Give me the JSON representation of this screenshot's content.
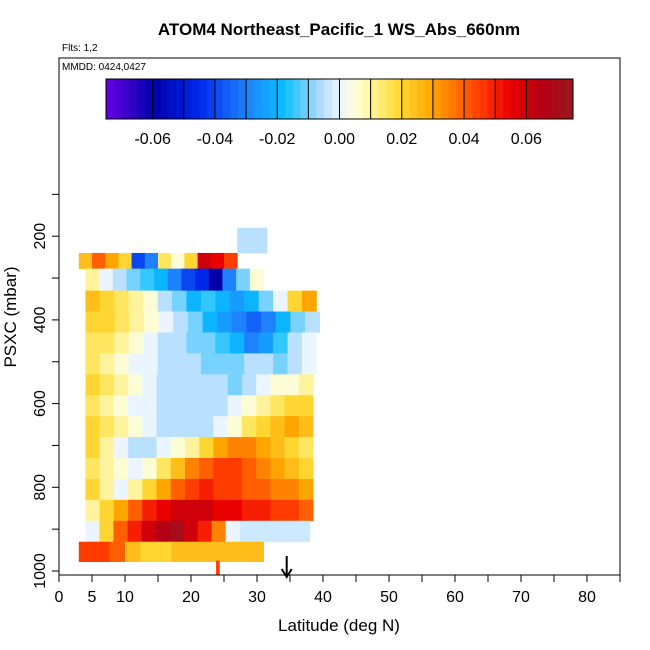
{
  "chart_data": {
    "type": "heatmap",
    "title": "ATOM4 Northeast_Pacific_1 WS_Abs_660nm",
    "flights_label": "Flts: 1,2",
    "dates_label": "MMDD: 0424,0427",
    "xlabel": "Latitude (deg N)",
    "ylabel": "PSXC (mbar)",
    "xlim": [
      0,
      85
    ],
    "ylim": [
      1000,
      0
    ],
    "x_ticks": [
      0,
      5,
      10,
      20,
      30,
      40,
      50,
      60,
      70,
      80
    ],
    "y_ticks": [
      200,
      400,
      600,
      800,
      1000
    ],
    "colorbar": {
      "range": [
        -0.075,
        0.075
      ],
      "ticks": [
        -0.06,
        -0.04,
        -0.02,
        0.0,
        0.02,
        0.04,
        0.06
      ],
      "tick_labels": [
        "-0.06",
        "-0.04",
        "-0.02",
        "0.00",
        "0.02",
        "0.04",
        "0.06"
      ]
    },
    "marker": {
      "type": "arrow",
      "latitude": 34.5
    },
    "rows": [
      {
        "p": 200,
        "lat": [
          27,
          31.5
        ],
        "vals": [
          -0.005,
          -0.005,
          -0.005
        ]
      },
      {
        "p": 230,
        "lat": [
          27,
          31.5
        ],
        "vals": [
          -0.005,
          -0.005,
          -0.005
        ]
      },
      {
        "p": 250,
        "lat": [
          3,
          27
        ],
        "vals": [
          0.025,
          0.04,
          0.03,
          0.02,
          -0.04,
          -0.03,
          0.015,
          0.005,
          0.02,
          0.06,
          0.055,
          0.045
        ]
      },
      {
        "p": 305,
        "lat": [
          4,
          31
        ],
        "vals": [
          0.01,
          0.0,
          -0.005,
          -0.01,
          -0.015,
          -0.02,
          -0.03,
          -0.04,
          -0.045,
          -0.06,
          -0.03,
          -0.01,
          0.005
        ]
      },
      {
        "p": 355,
        "lat": [
          4,
          39
        ],
        "vals": [
          0.025,
          0.02,
          0.015,
          0.01,
          0.005,
          -0.005,
          -0.01,
          -0.02,
          -0.015,
          -0.02,
          -0.025,
          -0.02,
          -0.01,
          0.0,
          0.02,
          0.03
        ]
      },
      {
        "p": 405,
        "lat": [
          4,
          39.5
        ],
        "vals": [
          0.02,
          0.02,
          0.015,
          0.01,
          0.005,
          0.0,
          -0.005,
          -0.01,
          -0.02,
          -0.025,
          -0.03,
          -0.035,
          -0.03,
          -0.02,
          -0.01,
          -0.005
        ]
      },
      {
        "p": 455,
        "lat": [
          4,
          39
        ],
        "vals": [
          0.015,
          0.015,
          0.01,
          0.005,
          0.0,
          -0.005,
          -0.005,
          -0.01,
          -0.01,
          -0.015,
          -0.02,
          -0.03,
          -0.025,
          -0.015,
          -0.005,
          0.0
        ]
      },
      {
        "p": 505,
        "lat": [
          4,
          39
        ],
        "vals": [
          0.015,
          0.01,
          0.005,
          0.0,
          0.0,
          -0.005,
          -0.005,
          -0.005,
          -0.01,
          -0.01,
          -0.01,
          -0.005,
          -0.005,
          -0.01,
          -0.005,
          0.0
        ]
      },
      {
        "p": 555,
        "lat": [
          4,
          38.5
        ],
        "vals": [
          0.02,
          0.015,
          0.01,
          0.005,
          0.0,
          -0.005,
          -0.005,
          -0.005,
          -0.005,
          -0.005,
          -0.01,
          -0.005,
          0.0,
          0.005,
          0.005,
          0.01
        ]
      },
      {
        "p": 605,
        "lat": [
          4,
          38.5
        ],
        "vals": [
          0.015,
          0.01,
          0.005,
          0.0,
          0.0,
          -0.005,
          -0.005,
          -0.005,
          -0.005,
          -0.005,
          0.0,
          0.005,
          0.01,
          0.015,
          0.02,
          0.02
        ]
      },
      {
        "p": 655,
        "lat": [
          4,
          38.5
        ],
        "vals": [
          0.02,
          0.015,
          0.01,
          0.005,
          0.0,
          -0.005,
          -0.005,
          -0.005,
          -0.005,
          0.0,
          0.005,
          0.015,
          0.02,
          0.025,
          0.03,
          0.025
        ]
      },
      {
        "p": 705,
        "lat": [
          4,
          38.5
        ],
        "vals": [
          0.02,
          0.01,
          0.0,
          -0.005,
          -0.005,
          0.0,
          0.005,
          0.01,
          0.02,
          0.03,
          0.035,
          0.035,
          0.03,
          0.025,
          0.02,
          0.015
        ]
      },
      {
        "p": 755,
        "lat": [
          4,
          38.5
        ],
        "vals": [
          0.015,
          0.01,
          0.005,
          0.0,
          0.005,
          0.015,
          0.025,
          0.035,
          0.04,
          0.045,
          0.045,
          0.04,
          0.035,
          0.03,
          0.025,
          0.02
        ]
      },
      {
        "p": 805,
        "lat": [
          4,
          38.5
        ],
        "vals": [
          0.02,
          0.01,
          0.0,
          0.01,
          0.02,
          0.03,
          0.04,
          0.045,
          0.05,
          0.045,
          0.045,
          0.04,
          0.04,
          0.035,
          0.035,
          0.03
        ]
      },
      {
        "p": 855,
        "lat": [
          4,
          38.5
        ],
        "vals": [
          0.01,
          0.02,
          0.03,
          0.04,
          0.05,
          0.055,
          0.06,
          0.06,
          0.06,
          0.055,
          0.055,
          0.05,
          0.05,
          0.045,
          0.045,
          0.04
        ]
      },
      {
        "p": 905,
        "lat": [
          4,
          38
        ],
        "vals": [
          0.0,
          0.02,
          0.04,
          0.05,
          0.06,
          0.065,
          0.07,
          0.06,
          0.05,
          0.035,
          0.0,
          -0.003,
          -0.003,
          -0.003,
          -0.003,
          -0.003
        ]
      },
      {
        "p": 955,
        "lat": [
          3,
          31
        ],
        "vals": [
          0.045,
          0.045,
          0.04,
          0.025,
          0.02,
          0.02,
          0.025,
          0.025,
          0.025,
          0.025,
          0.025,
          0.025
        ]
      },
      {
        "p": 1000,
        "lat": [
          23.8,
          24.3
        ],
        "vals": [
          0.045
        ]
      }
    ]
  }
}
